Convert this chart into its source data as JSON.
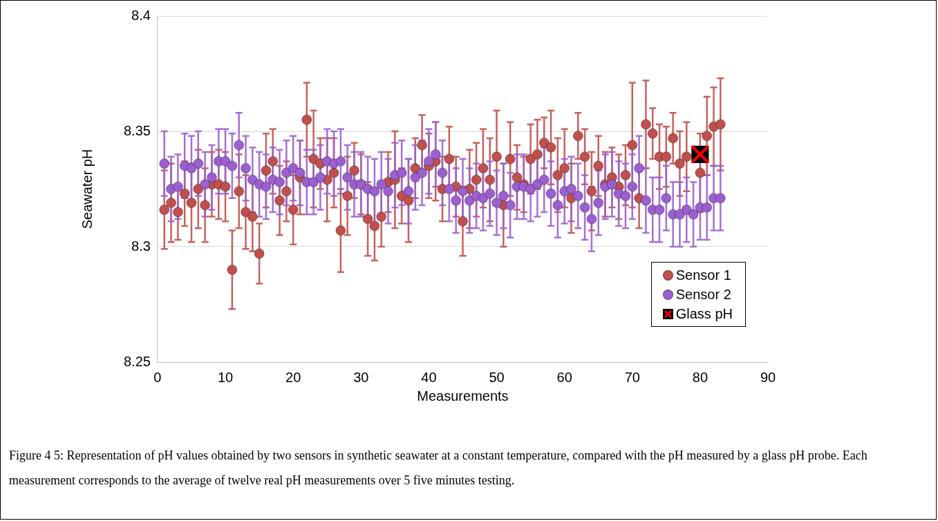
{
  "chart_data": {
    "type": "scatter",
    "xlabel": "Measurements",
    "ylabel": "Seawater pH",
    "xlim": [
      0,
      90
    ],
    "xticks": [
      0,
      10,
      20,
      30,
      40,
      50,
      60,
      70,
      80,
      90
    ],
    "ylim": [
      8.25,
      8.4
    ],
    "yticks": [
      8.25,
      8.3,
      8.35,
      8.4
    ],
    "grid": "y",
    "legend": "bottom right",
    "marker": "circle",
    "x": [
      1,
      2,
      3,
      4,
      5,
      6,
      7,
      8,
      9,
      10,
      11,
      12,
      13,
      14,
      15,
      16,
      17,
      18,
      19,
      20,
      21,
      22,
      23,
      24,
      25,
      26,
      27,
      28,
      29,
      30,
      31,
      32,
      33,
      34,
      35,
      36,
      37,
      38,
      39,
      40,
      41,
      42,
      43,
      44,
      45,
      46,
      47,
      48,
      49,
      50,
      51,
      52,
      53,
      54,
      55,
      56,
      57,
      58,
      59,
      60,
      61,
      62,
      63,
      64,
      65,
      66,
      67,
      68,
      69,
      70,
      71,
      72,
      73,
      74,
      75,
      76,
      77,
      78,
      79,
      80,
      81,
      82,
      83
    ],
    "series": [
      {
        "name": "Sensor 1",
        "color": "#c0504d",
        "values": [
          8.316,
          8.319,
          8.315,
          8.323,
          8.319,
          8.325,
          8.318,
          8.327,
          8.327,
          8.326,
          8.29,
          8.324,
          8.315,
          8.313,
          8.297,
          8.333,
          8.337,
          8.32,
          8.324,
          8.316,
          8.33,
          8.355,
          8.338,
          8.336,
          8.329,
          8.332,
          8.307,
          8.322,
          8.333,
          8.327,
          8.312,
          8.309,
          8.313,
          8.328,
          8.329,
          8.322,
          8.32,
          8.334,
          8.344,
          8.335,
          8.337,
          8.325,
          8.338,
          8.326,
          8.311,
          8.325,
          8.329,
          8.334,
          8.329,
          8.339,
          8.318,
          8.338,
          8.33,
          8.327,
          8.338,
          8.34,
          8.345,
          8.343,
          8.331,
          8.334,
          8.321,
          8.348,
          8.339,
          8.324,
          8.335,
          8.327,
          8.33,
          8.326,
          8.331,
          8.344,
          8.321,
          8.353,
          8.349,
          8.339,
          8.339,
          8.347,
          8.336,
          8.339,
          null,
          8.332,
          8.348,
          8.352,
          8.353
        ],
        "errors": [
          0.017,
          0.017,
          0.012,
          0.014,
          0.017,
          0.017,
          0.016,
          0.014,
          0.015,
          0.015,
          0.017,
          0.016,
          0.016,
          0.015,
          0.013,
          0.016,
          0.014,
          0.015,
          0.013,
          0.015,
          0.016,
          0.016,
          0.021,
          0.011,
          0.018,
          0.015,
          0.018,
          0.017,
          0.012,
          0.013,
          0.016,
          0.015,
          0.013,
          0.013,
          0.021,
          0.012,
          0.018,
          0.013,
          0.013,
          0.014,
          0.017,
          0.014,
          0.014,
          0.013,
          0.015,
          0.017,
          0.016,
          0.017,
          0.018,
          0.02,
          0.018,
          0.016,
          0.014,
          0.012,
          0.015,
          0.015,
          0.011,
          0.016,
          0.016,
          0.017,
          0.015,
          0.01,
          0.012,
          0.017,
          0.013,
          0.014,
          0.013,
          0.014,
          0.013,
          0.027,
          0.013,
          0.019,
          0.011,
          0.014,
          0.013,
          0.011,
          0.014,
          0.015,
          null,
          0.017,
          0.017,
          0.017,
          0.02
        ]
      },
      {
        "name": "Sensor 2",
        "color": "#9b5fcf",
        "values": [
          8.336,
          8.325,
          8.326,
          8.335,
          8.334,
          8.336,
          8.327,
          8.33,
          8.337,
          8.337,
          8.335,
          8.344,
          8.334,
          8.329,
          8.327,
          8.326,
          8.329,
          8.328,
          8.332,
          8.334,
          8.332,
          8.328,
          8.328,
          8.33,
          8.337,
          8.336,
          8.337,
          8.33,
          8.327,
          8.327,
          8.325,
          8.324,
          8.327,
          8.324,
          8.331,
          8.332,
          8.324,
          8.33,
          8.332,
          8.337,
          8.34,
          8.332,
          8.325,
          8.32,
          8.324,
          8.32,
          8.322,
          8.321,
          8.323,
          8.319,
          8.322,
          8.318,
          8.326,
          8.326,
          8.325,
          8.327,
          8.329,
          8.323,
          8.318,
          8.324,
          8.325,
          8.322,
          8.317,
          8.312,
          8.319,
          8.326,
          8.327,
          8.323,
          8.322,
          8.326,
          8.334,
          8.32,
          8.316,
          8.316,
          8.321,
          8.314,
          8.314,
          8.316,
          8.314,
          8.317,
          8.317,
          8.321,
          8.321
        ],
        "errors": [
          0.014,
          0.014,
          0.014,
          0.014,
          0.014,
          0.014,
          0.014,
          0.014,
          0.014,
          0.014,
          0.014,
          0.014,
          0.014,
          0.014,
          0.014,
          0.014,
          0.014,
          0.014,
          0.014,
          0.014,
          0.014,
          0.014,
          0.014,
          0.014,
          0.014,
          0.014,
          0.014,
          0.014,
          0.014,
          0.014,
          0.014,
          0.014,
          0.014,
          0.014,
          0.014,
          0.014,
          0.014,
          0.014,
          0.014,
          0.014,
          0.014,
          0.014,
          0.014,
          0.014,
          0.014,
          0.014,
          0.014,
          0.014,
          0.014,
          0.014,
          0.014,
          0.014,
          0.014,
          0.014,
          0.014,
          0.014,
          0.014,
          0.014,
          0.014,
          0.014,
          0.014,
          0.014,
          0.014,
          0.014,
          0.014,
          0.014,
          0.014,
          0.014,
          0.014,
          0.014,
          0.014,
          0.014,
          0.014,
          0.014,
          0.014,
          0.014,
          0.014,
          0.014,
          0.014,
          0.014,
          0.014,
          0.014,
          0.014
        ]
      },
      {
        "name": "Glass pH",
        "color": "#000000",
        "marker": "square",
        "x": [
          80
        ],
        "values": [
          8.34
        ]
      }
    ],
    "annotations": [
      "Figure 4 5: Representation of pH values obtained by two sensors in synthetic seawater at a constant temperature, compared with the pH measured by a glass pH probe. Each measurement corresponds to the average of twelve real pH measurements over 5 five minutes testing."
    ]
  }
}
